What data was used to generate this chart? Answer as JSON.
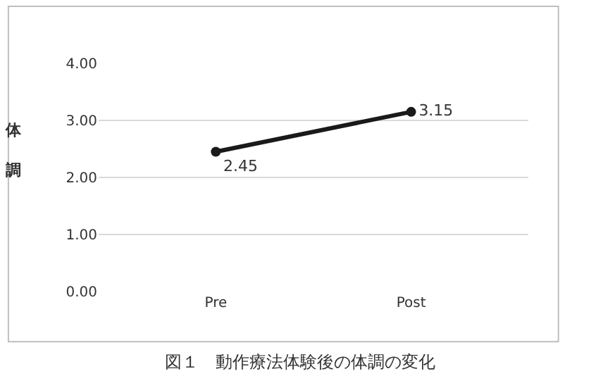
{
  "chart_data": {
    "type": "line",
    "ylabel": "体調",
    "categories": [
      "Pre",
      "Post"
    ],
    "series": [
      {
        "color": "#1a1a1a",
        "values": [
          2.45,
          3.15
        ]
      }
    ],
    "ylim": [
      0,
      4
    ],
    "yticks": [
      {
        "value": 0,
        "label": "0.00"
      },
      {
        "value": 1,
        "label": "1.00"
      },
      {
        "value": 2,
        "label": "2.00"
      },
      {
        "value": 3,
        "label": "3.00"
      },
      {
        "value": 4,
        "label": "4.00"
      }
    ],
    "grid": "y",
    "marker": "circle",
    "line_style": "solid",
    "data_labels": true,
    "annotations": [
      "図１　動作療法体験後の体調の変化"
    ]
  }
}
